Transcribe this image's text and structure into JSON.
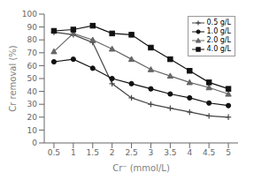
{
  "chart_data": {
    "type": "line",
    "xlabel": "Cr⁻ (mmol/L)",
    "ylabel": "Cr removal (%)",
    "x": [
      0.5,
      1.0,
      1.5,
      2.0,
      2.5,
      3.0,
      3.5,
      4.0,
      4.5,
      5.0
    ],
    "series": [
      {
        "name": "0.5 g/L",
        "color": "#444444",
        "marker": "plus",
        "values": [
          86,
          84,
          78,
          46,
          35,
          30,
          27,
          24,
          21,
          20
        ]
      },
      {
        "name": "1.0 g/L",
        "color": "#111111",
        "marker": "circle",
        "values": [
          63,
          65,
          58,
          50,
          46,
          42,
          38,
          35,
          31,
          29
        ]
      },
      {
        "name": "2.0 g/L",
        "color": "#666666",
        "marker": "triangle",
        "values": [
          71,
          85,
          80,
          73,
          65,
          57,
          52,
          47,
          43,
          38
        ]
      },
      {
        "name": "4.0 g/L",
        "color": "#111111",
        "marker": "square",
        "values": [
          87,
          88,
          91,
          85,
          84,
          74,
          65,
          56,
          47,
          42
        ]
      }
    ],
    "xlim": [
      0.25,
      5.25
    ],
    "ylim": [
      0,
      100
    ],
    "xticks": [
      0.5,
      1,
      1.5,
      2,
      2.5,
      3,
      3.5,
      4,
      4.5,
      5
    ],
    "yticks": [
      0,
      10,
      20,
      30,
      40,
      50,
      60,
      70,
      80,
      90,
      100
    ],
    "legend": "upper right",
    "grid": false
  }
}
